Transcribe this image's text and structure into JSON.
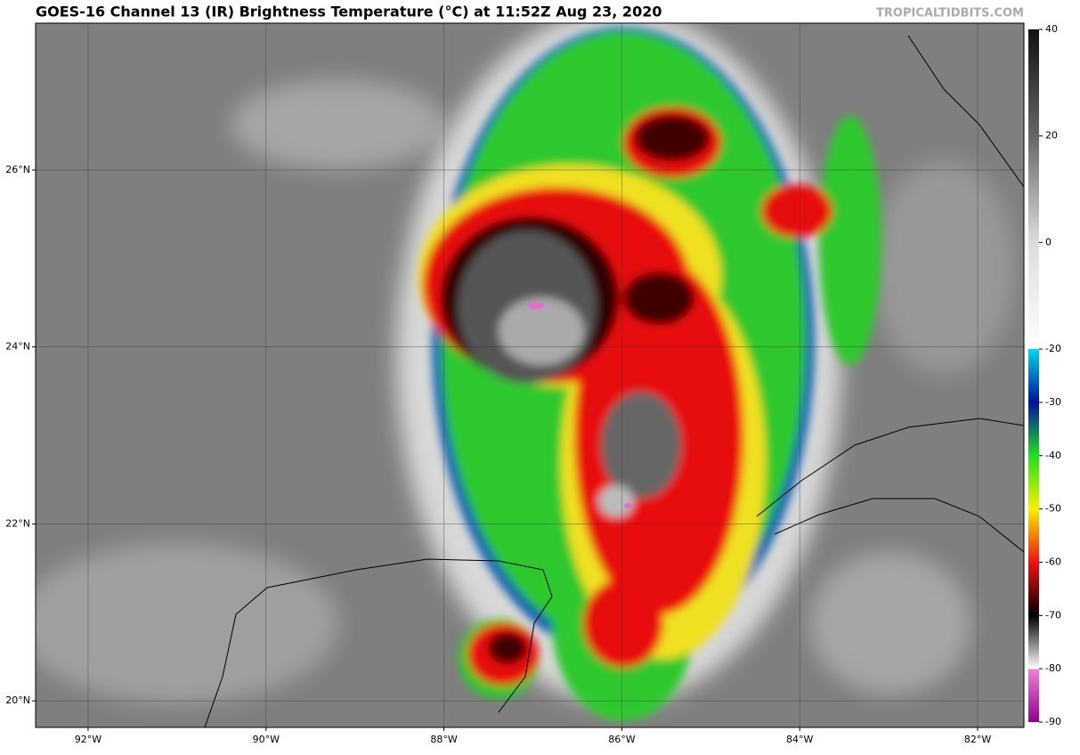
{
  "header": {
    "title": "GOES-16 Channel 13 (IR) Brightness Temperature (°C) at 11:52Z Aug 23, 2020",
    "credit": "TROPICALTIDBITS.COM"
  },
  "map": {
    "lon_range": [
      -92.59,
      -81.48
    ],
    "lat_range": [
      19.7,
      27.66
    ],
    "lon_ticks": [
      {
        "value": -92,
        "label": "92°W"
      },
      {
        "value": -90,
        "label": "90°W"
      },
      {
        "value": -88,
        "label": "88°W"
      },
      {
        "value": -86,
        "label": "86°W"
      },
      {
        "value": -84,
        "label": "84°W"
      },
      {
        "value": -82,
        "label": "82°W"
      }
    ],
    "lat_ticks": [
      {
        "value": 20,
        "label": "20°N"
      },
      {
        "value": 22,
        "label": "22°N"
      },
      {
        "value": 24,
        "label": "24°N"
      },
      {
        "value": 26,
        "label": "26°N"
      }
    ],
    "colorbar_range": [
      -90,
      40
    ],
    "colorbar_ticks": [
      40,
      20,
      0,
      -20,
      -30,
      -40,
      -50,
      -60,
      -70,
      -80,
      -90
    ]
  }
}
